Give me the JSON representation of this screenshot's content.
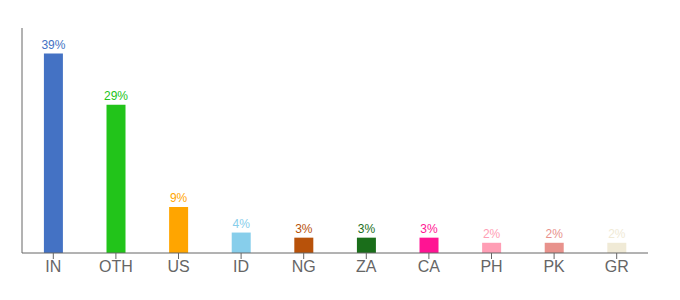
{
  "chart_data": {
    "type": "bar",
    "categories": [
      "IN",
      "OTH",
      "US",
      "ID",
      "NG",
      "ZA",
      "CA",
      "PH",
      "PK",
      "GR"
    ],
    "values": [
      39,
      29,
      9,
      4,
      3,
      3,
      3,
      2,
      2,
      2
    ],
    "value_labels": [
      "39%",
      "29%",
      "9%",
      "4%",
      "3%",
      "3%",
      "3%",
      "2%",
      "2%",
      "2%"
    ],
    "colors": [
      "#4472c4",
      "#22c41a",
      "#ffa500",
      "#87ceeb",
      "#b8520a",
      "#1a6e1a",
      "#ff1493",
      "#ff9eb5",
      "#e8928c",
      "#f0ead6"
    ],
    "ylim": [
      0,
      44
    ],
    "data_labels": true,
    "grid": false,
    "tick_labels": "x"
  }
}
